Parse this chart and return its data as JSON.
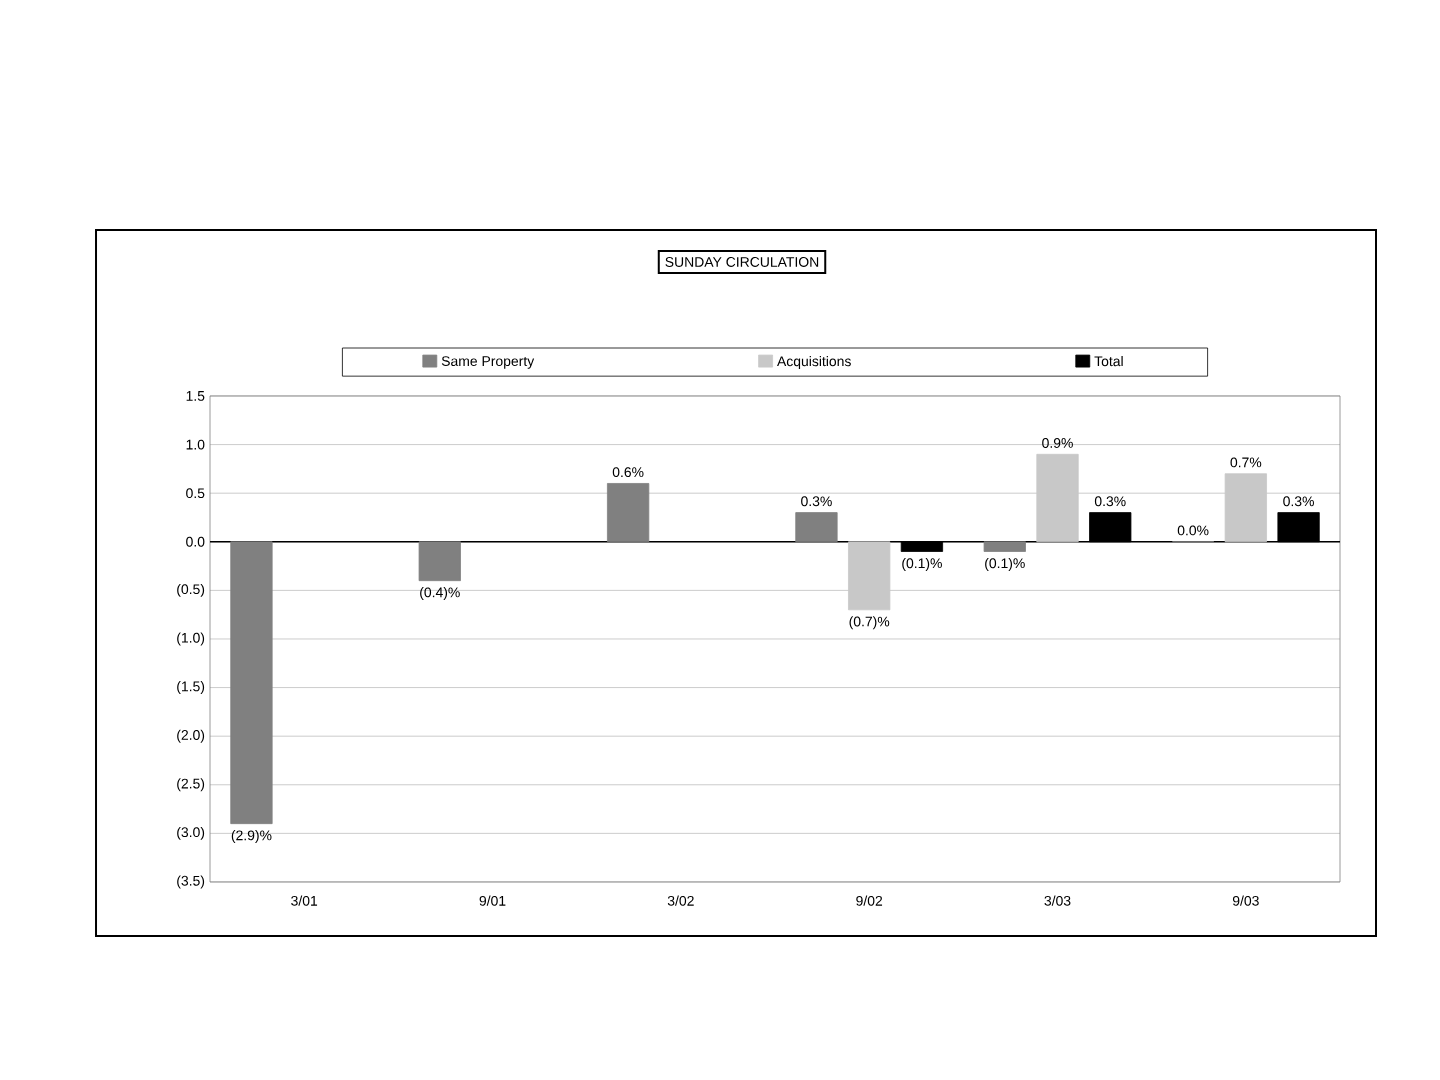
{
  "chart_data": {
    "type": "bar",
    "title": "SUNDAY CIRCULATION",
    "categories": [
      "3/01",
      "9/01",
      "3/02",
      "9/02",
      "3/03",
      "9/03"
    ],
    "series": [
      {
        "name": "Same Property",
        "color": "#808080",
        "values": [
          -2.9,
          -0.4,
          0.6,
          0.3,
          -0.1,
          0.0
        ],
        "value_labels": [
          "(2.9)%",
          "(0.4)%",
          "0.6%",
          "0.3%",
          "(0.1)%",
          "0.0%"
        ]
      },
      {
        "name": "Acquisitions",
        "color": "#c8c8c8",
        "values": [
          null,
          null,
          null,
          -0.7,
          0.9,
          0.7
        ],
        "value_labels": [
          null,
          null,
          null,
          "(0.7)%",
          "0.9%",
          "0.7%"
        ]
      },
      {
        "name": "Total",
        "color": "#000000",
        "values": [
          null,
          null,
          null,
          -0.1,
          0.3,
          0.3
        ],
        "value_labels": [
          null,
          null,
          null,
          "(0.1)%",
          "0.3%",
          "0.3%"
        ]
      }
    ],
    "ylim": [
      -3.5,
      1.5
    ],
    "yticks": [
      {
        "value": -3.5,
        "label": "(3.5)"
      },
      {
        "value": -3.0,
        "label": "(3.0)"
      },
      {
        "value": -2.5,
        "label": "(2.5)"
      },
      {
        "value": -2.0,
        "label": "(2.0)"
      },
      {
        "value": -1.5,
        "label": "(1.5)"
      },
      {
        "value": -1.0,
        "label": "(1.0)"
      },
      {
        "value": -0.5,
        "label": "(0.5)"
      },
      {
        "value": 0.0,
        "label": "0.0"
      },
      {
        "value": 0.5,
        "label": "0.5"
      },
      {
        "value": 1.0,
        "label": "1.0"
      },
      {
        "value": 1.5,
        "label": "1.5"
      }
    ],
    "grid": "y",
    "legend": "top"
  }
}
